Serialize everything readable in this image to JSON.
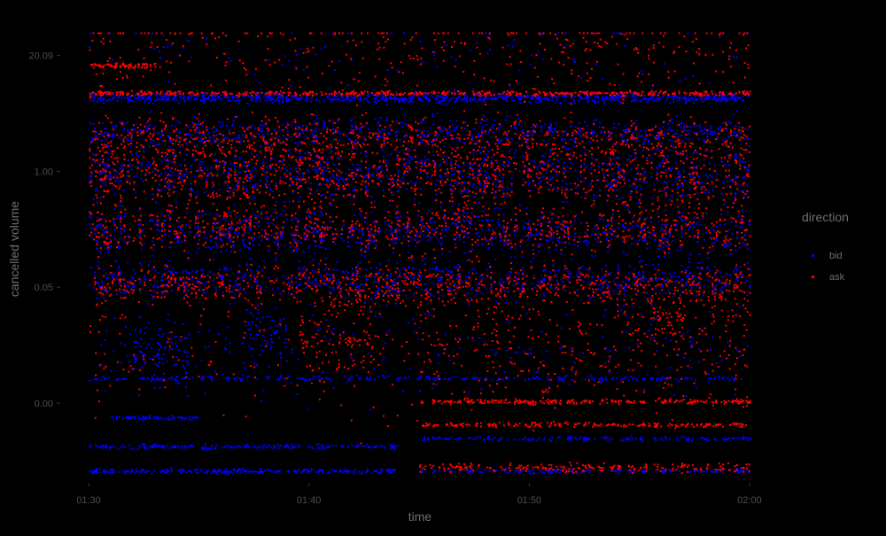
{
  "chart_data": {
    "type": "scatter",
    "title": "",
    "xlabel": "time",
    "ylabel": "cancelled volume",
    "x_ticks": [
      "01:30",
      "01:40",
      "01:50",
      "02:00"
    ],
    "x_tick_minutes": [
      0,
      10,
      20,
      30
    ],
    "xlim_minutes": [
      0,
      30
    ],
    "y_ticks": [
      "0.00",
      "0.05",
      "1.00",
      "20.09"
    ],
    "y_tick_positions": [
      0,
      1,
      2,
      3
    ],
    "ylim_positions": [
      -0.65,
      3.25
    ],
    "grid": false,
    "legend": {
      "title": "direction",
      "placement": "right",
      "entries": [
        "bid",
        "ask"
      ]
    },
    "series": [
      {
        "name": "bid",
        "color": "#0000ff",
        "bands": [
          {
            "x": [
              0,
              30
            ],
            "y": 2.64,
            "density": 0.8,
            "spread": 0.02
          },
          {
            "x": [
              0,
              30
            ],
            "y": 2.35,
            "density": 0.6,
            "spread": 0.06
          },
          {
            "x": [
              0,
              30
            ],
            "y": 2.0,
            "density": 0.9,
            "spread": 0.12
          },
          {
            "x": [
              0,
              30
            ],
            "y": 1.48,
            "density": 0.8,
            "spread": 0.1
          },
          {
            "x": [
              0,
              30
            ],
            "y": 1.08,
            "density": 0.7,
            "spread": 0.08
          },
          {
            "x": [
              2,
              4.5
            ],
            "y": 0.46,
            "density": 1.0,
            "spread": 0.14
          },
          {
            "x": [
              7,
              9
            ],
            "y": 0.62,
            "density": 0.8,
            "spread": 0.12
          },
          {
            "x": [
              0,
              30
            ],
            "y": 0.55,
            "density": 0.25,
            "spread": 0.25
          },
          {
            "x": [
              1,
              5
            ],
            "y": -0.12,
            "density": 0.5,
            "spread": 0.01
          },
          {
            "x": [
              0,
              14
            ],
            "y": -0.37,
            "density": 0.4,
            "spread": 0.01
          },
          {
            "x": [
              0,
              14
            ],
            "y": -0.58,
            "density": 0.5,
            "spread": 0.01
          },
          {
            "x": [
              15,
              30
            ],
            "y": -0.3,
            "density": 0.3,
            "spread": 0.01
          },
          {
            "x": [
              15,
              30
            ],
            "y": -0.58,
            "density": 0.3,
            "spread": 0.01
          },
          {
            "x": [
              0,
              30
            ],
            "y": 0.22,
            "density": 0.25,
            "spread": 0.01
          },
          {
            "x": [
              0,
              30
            ],
            "y": 3.0,
            "density": 0.12,
            "spread": 0.25
          }
        ]
      },
      {
        "name": "ask",
        "color": "#ff0000",
        "bands": [
          {
            "x": [
              0,
              30
            ],
            "y": 2.68,
            "density": 0.5,
            "spread": 0.01
          },
          {
            "x": [
              0,
              30
            ],
            "y": 2.28,
            "density": 0.8,
            "spread": 0.1
          },
          {
            "x": [
              0,
              30
            ],
            "y": 1.95,
            "density": 0.9,
            "spread": 0.12
          },
          {
            "x": [
              0,
              30
            ],
            "y": 1.52,
            "density": 0.8,
            "spread": 0.1
          },
          {
            "x": [
              0,
              30
            ],
            "y": 1.03,
            "density": 0.7,
            "spread": 0.08
          },
          {
            "x": [
              9.5,
              13
            ],
            "y": 0.62,
            "density": 0.9,
            "spread": 0.18
          },
          {
            "x": [
              25.5,
              27
            ],
            "y": 0.75,
            "density": 0.9,
            "spread": 0.1
          },
          {
            "x": [
              15,
              30
            ],
            "y": 0.5,
            "density": 0.5,
            "spread": 0.3
          },
          {
            "x": [
              0,
              30
            ],
            "y": 0.6,
            "density": 0.3,
            "spread": 0.35
          },
          {
            "x": [
              15,
              30
            ],
            "y": 0.02,
            "density": 0.5,
            "spread": 0.01
          },
          {
            "x": [
              15,
              30
            ],
            "y": -0.18,
            "density": 0.4,
            "spread": 0.01
          },
          {
            "x": [
              15,
              30
            ],
            "y": -0.55,
            "density": 0.4,
            "spread": 0.02
          },
          {
            "x": [
              0,
              30
            ],
            "y": 3.05,
            "density": 0.35,
            "spread": 0.2
          },
          {
            "x": [
              0,
              3
            ],
            "y": 2.92,
            "density": 0.7,
            "spread": 0.01
          }
        ]
      }
    ]
  }
}
